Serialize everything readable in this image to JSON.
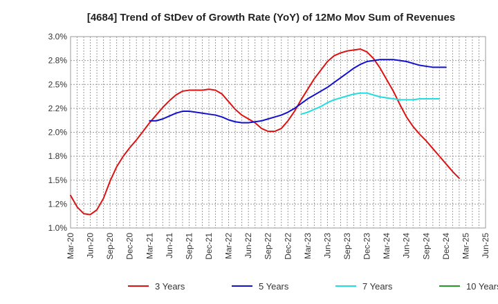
{
  "chart_data": {
    "type": "line",
    "title": "[4684]  Trend of StDev of Growth Rate (YoY) of 12Mo Mov Sum of Revenues",
    "xlabel": "",
    "ylabel": "",
    "ylim": [
      1.0,
      3.0
    ],
    "yticks": [
      1.0,
      1.25,
      1.5,
      1.75,
      2.0,
      2.25,
      2.5,
      2.75,
      3.0
    ],
    "ytick_labels": [
      "1.0%",
      "1.2%",
      "1.5%",
      "1.8%",
      "2.0%",
      "2.2%",
      "2.5%",
      "2.8%",
      "3.0%"
    ],
    "x_start": "Mar-20",
    "x_tick_labels": [
      "Mar-20",
      "Jun-20",
      "Sep-20",
      "Dec-20",
      "Mar-21",
      "Jun-21",
      "Sep-21",
      "Dec-21",
      "Mar-22",
      "Jun-22",
      "Sep-22",
      "Dec-22",
      "Mar-23",
      "Jun-23",
      "Sep-23",
      "Dec-23",
      "Mar-24",
      "Jun-24",
      "Sep-24",
      "Dec-24",
      "Mar-25",
      "Jun-25"
    ],
    "grid": true,
    "legend_position": "bottom",
    "series": [
      {
        "name": "3 Years",
        "color": "#dd1111",
        "start_index": 0,
        "values": [
          1.34,
          1.22,
          1.15,
          1.14,
          1.19,
          1.31,
          1.49,
          1.64,
          1.75,
          1.84,
          1.92,
          2.01,
          2.1,
          2.18,
          2.26,
          2.33,
          2.39,
          2.43,
          2.44,
          2.44,
          2.44,
          2.45,
          2.44,
          2.4,
          2.32,
          2.24,
          2.18,
          2.14,
          2.1,
          2.04,
          2.01,
          2.01,
          2.04,
          2.12,
          2.22,
          2.34,
          2.45,
          2.56,
          2.65,
          2.74,
          2.8,
          2.83,
          2.85,
          2.86,
          2.87,
          2.84,
          2.77,
          2.67,
          2.55,
          2.43,
          2.29,
          2.16,
          2.06,
          1.98,
          1.91,
          1.83,
          1.75,
          1.67,
          1.59,
          1.52
        ]
      },
      {
        "name": "5 Years",
        "color": "#1111cc",
        "start_index": 12,
        "values": [
          2.12,
          2.12,
          2.14,
          2.17,
          2.2,
          2.22,
          2.22,
          2.21,
          2.2,
          2.19,
          2.18,
          2.16,
          2.13,
          2.11,
          2.1,
          2.1,
          2.11,
          2.12,
          2.14,
          2.16,
          2.18,
          2.21,
          2.25,
          2.3,
          2.35,
          2.39,
          2.43,
          2.47,
          2.52,
          2.57,
          2.62,
          2.67,
          2.71,
          2.74,
          2.75,
          2.76,
          2.76,
          2.76,
          2.75,
          2.74,
          2.72,
          2.7,
          2.69,
          2.68,
          2.68,
          2.68
        ]
      },
      {
        "name": "7 Years",
        "color": "#22dddd",
        "start_index": 35,
        "values": [
          2.19,
          2.21,
          2.24,
          2.27,
          2.31,
          2.34,
          2.36,
          2.38,
          2.4,
          2.41,
          2.41,
          2.39,
          2.37,
          2.36,
          2.35,
          2.34,
          2.34,
          2.34,
          2.35,
          2.35,
          2.35,
          2.35
        ]
      },
      {
        "name": "10 Years",
        "color": "#229922",
        "start_index": 0,
        "values": []
      }
    ]
  }
}
